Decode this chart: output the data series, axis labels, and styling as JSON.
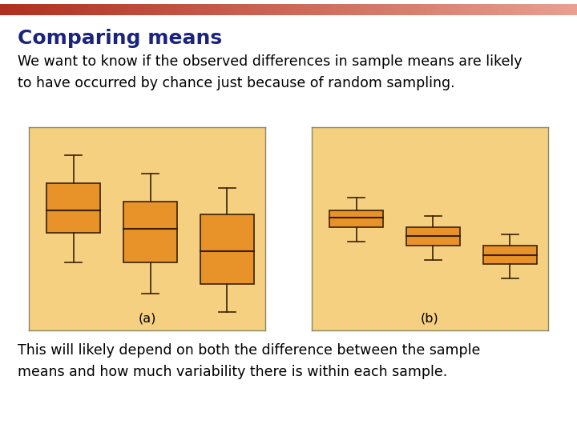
{
  "title": "Comparing means",
  "title_color": "#1a237e",
  "title_fontsize": 18,
  "top_bar_color_left": "#b03020",
  "top_bar_color_right": "#e8a090",
  "body_bg": "#ffffff",
  "text1_line1": "We want to know if the observed differences in sample means are likely",
  "text1_line2": "to have occurred by chance just because of random sampling.",
  "text2_line1": "This will likely depend on both the difference between the sample",
  "text2_line2": "means and how much variability there is within each sample.",
  "text_fontsize": 12.5,
  "panel_bg": "#f5d080",
  "box_face": "#e8922a",
  "box_edge": "#3a2000",
  "label_a": "(a)",
  "label_b": "(b)",
  "panel_a_boxes": [
    {
      "med": 6.0,
      "q1": 4.8,
      "q3": 7.5,
      "whislo": 3.2,
      "whishi": 9.0,
      "x": 1.0
    },
    {
      "med": 5.0,
      "q1": 3.2,
      "q3": 6.5,
      "whislo": 1.5,
      "whishi": 8.0,
      "x": 2.2
    },
    {
      "med": 3.8,
      "q1": 2.0,
      "q3": 5.8,
      "whislo": 0.5,
      "whishi": 7.2,
      "x": 3.4
    }
  ],
  "panel_b_boxes": [
    {
      "med": 5.6,
      "q1": 5.1,
      "q3": 6.0,
      "whislo": 4.3,
      "whishi": 6.7,
      "x": 1.0
    },
    {
      "med": 4.6,
      "q1": 4.1,
      "q3": 5.1,
      "whislo": 3.3,
      "whishi": 5.7,
      "x": 2.2
    },
    {
      "med": 3.6,
      "q1": 3.1,
      "q3": 4.1,
      "whislo": 2.3,
      "whishi": 4.7,
      "x": 3.4
    }
  ],
  "panel_a_xlim": [
    0.3,
    4.0
  ],
  "panel_b_xlim": [
    0.3,
    4.0
  ],
  "panel_ylim": [
    -0.5,
    10.5
  ],
  "box_width": 0.42
}
